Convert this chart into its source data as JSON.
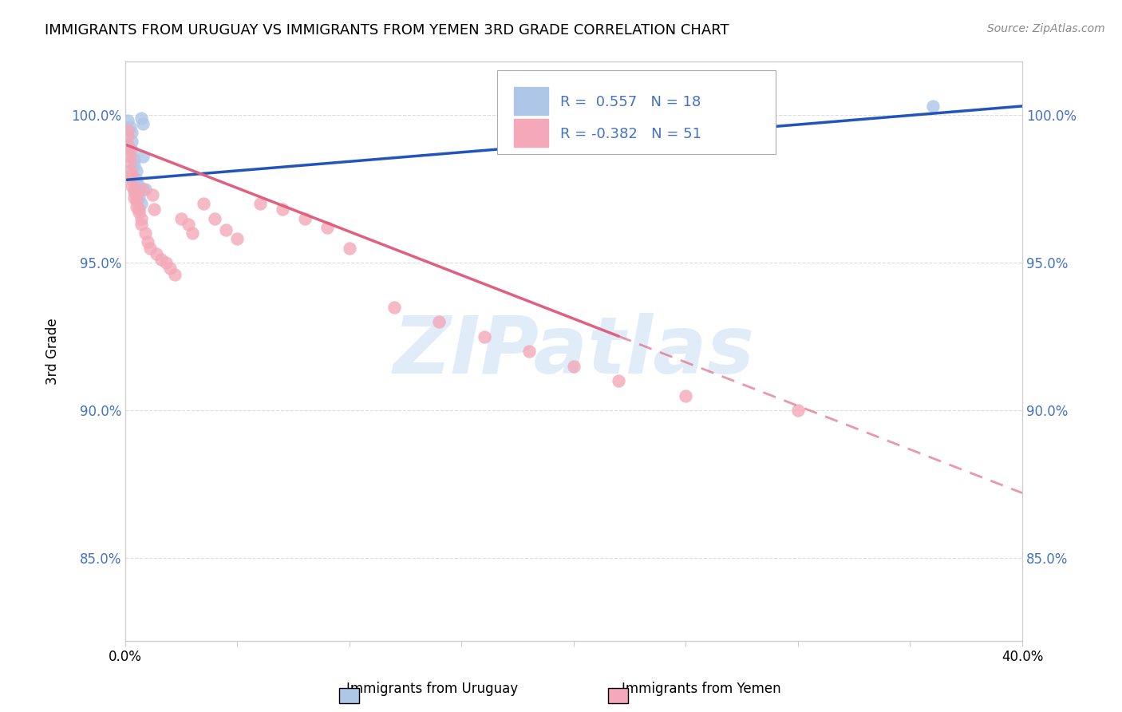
{
  "title": "IMMIGRANTS FROM URUGUAY VS IMMIGRANTS FROM YEMEN 3RD GRADE CORRELATION CHART",
  "source": "Source: ZipAtlas.com",
  "ylabel": "3rd Grade",
  "xlim": [
    0.0,
    0.4
  ],
  "ylim": [
    0.822,
    1.018
  ],
  "yticks": [
    0.85,
    0.9,
    0.95,
    1.0
  ],
  "ytick_labels": [
    "85.0%",
    "90.0%",
    "95.0%",
    "100.0%"
  ],
  "xticks": [
    0.0,
    0.05,
    0.1,
    0.15,
    0.2,
    0.25,
    0.3,
    0.35,
    0.4
  ],
  "xtick_labels": [
    "0.0%",
    "",
    "",
    "",
    "",
    "",
    "",
    "",
    "40.0%"
  ],
  "r_uruguay": 0.557,
  "n_uruguay": 18,
  "r_yemen": -0.382,
  "n_yemen": 51,
  "uruguay_color": "#aec6e8",
  "yemen_color": "#f4a8b8",
  "trend_uruguay_color": "#2255bb",
  "trend_yemen_color": "#e06080",
  "watermark_text": "ZIPatlas",
  "background_color": "#ffffff",
  "grid_color": "#dddddd",
  "uruguay_x": [
    0.001,
    0.002,
    0.003,
    0.003,
    0.003,
    0.004,
    0.004,
    0.005,
    0.005,
    0.006,
    0.006,
    0.006,
    0.007,
    0.007,
    0.008,
    0.008,
    0.009,
    0.36
  ],
  "uruguay_y": [
    0.998,
    0.996,
    0.994,
    0.991,
    0.988,
    0.985,
    0.983,
    0.981,
    0.978,
    0.976,
    0.974,
    0.972,
    0.97,
    0.999,
    0.997,
    0.986,
    0.975,
    1.003
  ],
  "yemen_x": [
    0.001,
    0.001,
    0.001,
    0.002,
    0.002,
    0.002,
    0.002,
    0.003,
    0.003,
    0.003,
    0.004,
    0.004,
    0.004,
    0.005,
    0.005,
    0.005,
    0.006,
    0.006,
    0.007,
    0.007,
    0.008,
    0.009,
    0.01,
    0.011,
    0.012,
    0.013,
    0.014,
    0.016,
    0.018,
    0.02,
    0.022,
    0.025,
    0.028,
    0.03,
    0.035,
    0.04,
    0.045,
    0.05,
    0.06,
    0.07,
    0.08,
    0.09,
    0.1,
    0.12,
    0.14,
    0.16,
    0.18,
    0.2,
    0.22,
    0.25,
    0.3
  ],
  "yemen_y": [
    0.995,
    0.993,
    0.99,
    0.988,
    0.986,
    0.984,
    0.981,
    0.98,
    0.978,
    0.976,
    0.974,
    0.972,
    0.975,
    0.973,
    0.971,
    0.969,
    0.968,
    0.967,
    0.965,
    0.963,
    0.975,
    0.96,
    0.957,
    0.955,
    0.973,
    0.968,
    0.953,
    0.951,
    0.95,
    0.948,
    0.946,
    0.965,
    0.963,
    0.96,
    0.97,
    0.965,
    0.961,
    0.958,
    0.97,
    0.968,
    0.965,
    0.962,
    0.955,
    0.935,
    0.93,
    0.925,
    0.92,
    0.915,
    0.91,
    0.905,
    0.9
  ],
  "trend_uru_x0": 0.0,
  "trend_uru_y0": 0.978,
  "trend_uru_x1": 0.4,
  "trend_uru_y1": 1.003,
  "trend_yem_x0": 0.0,
  "trend_yem_y0": 0.99,
  "trend_yem_x1": 0.4,
  "trend_yem_y1": 0.872,
  "trend_yem_solid_end": 0.22,
  "trend_yem_dash_start": 0.22
}
